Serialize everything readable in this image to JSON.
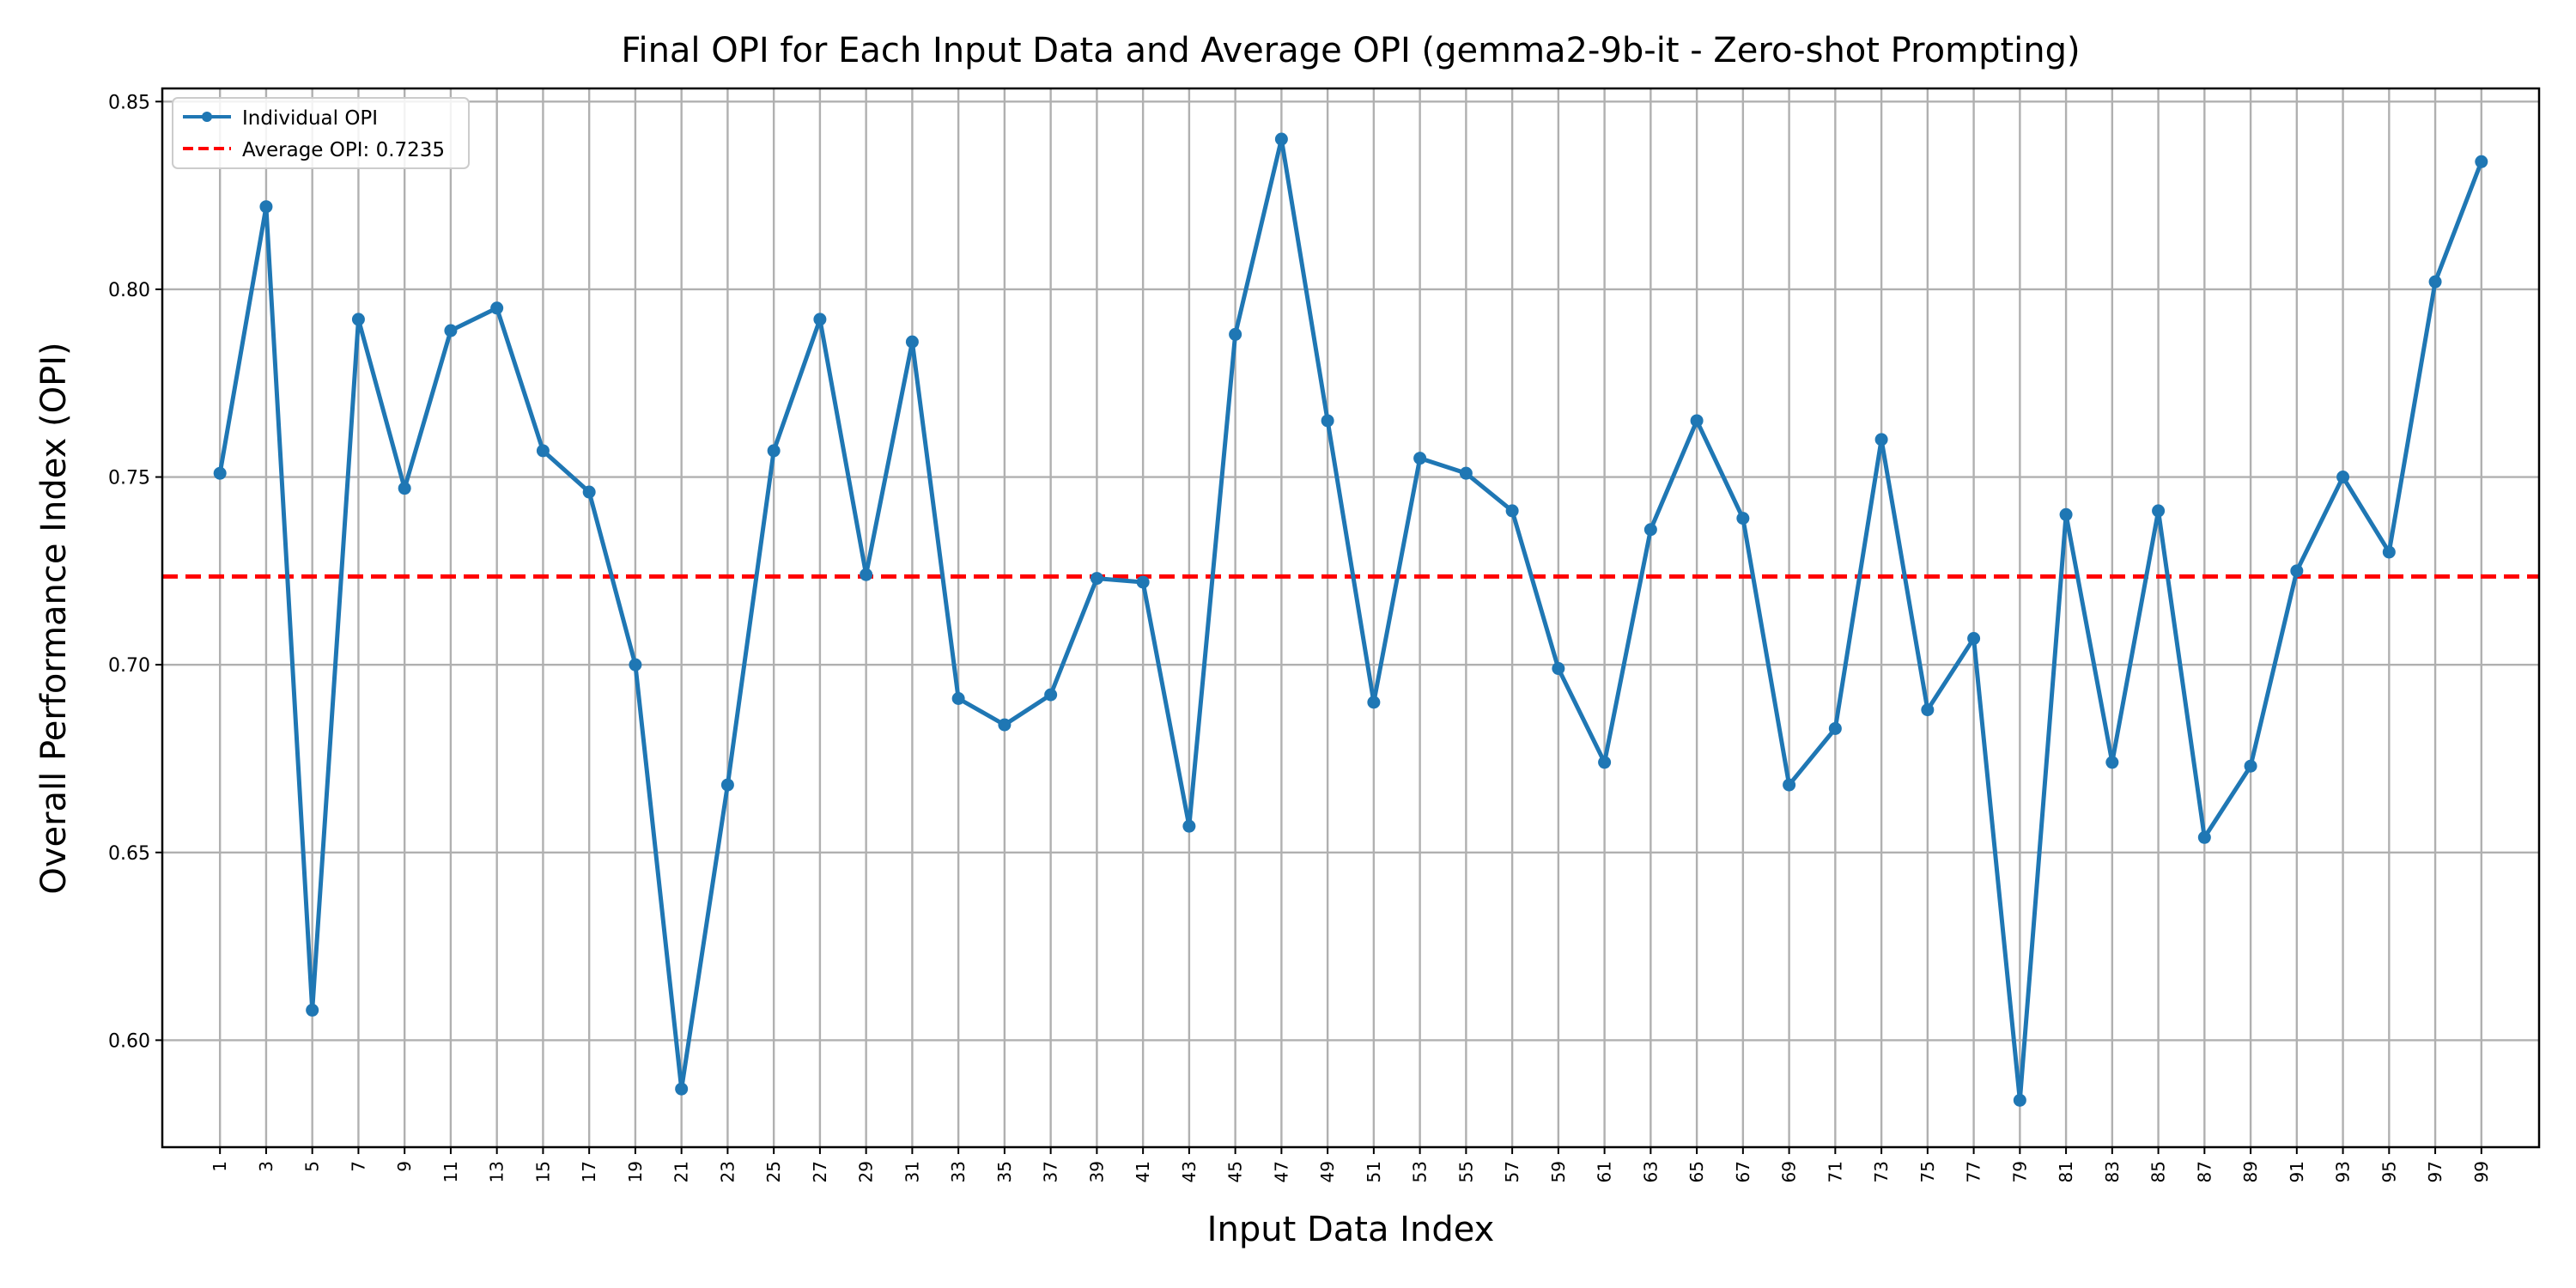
{
  "chart_data": {
    "type": "line",
    "title": "Final OPI for Each Input Data and Average OPI (gemma2-9b-it - Zero-shot Prompting)",
    "xlabel": "Input Data Index",
    "ylabel": "Overall Performance Index (OPI)",
    "xlim": [
      -1.5,
      101.5
    ],
    "ylim": [
      0.5715,
      0.8535
    ],
    "xticks": [
      1,
      3,
      5,
      7,
      9,
      11,
      13,
      15,
      17,
      19,
      21,
      23,
      25,
      27,
      29,
      31,
      33,
      35,
      37,
      39,
      41,
      43,
      45,
      47,
      49,
      51,
      53,
      55,
      57,
      59,
      61,
      63,
      65,
      67,
      69,
      71,
      73,
      75,
      77,
      79,
      81,
      83,
      85,
      87,
      89,
      91,
      93,
      95,
      97,
      99
    ],
    "yticks": [
      0.6,
      0.65,
      0.7,
      0.75,
      0.8,
      0.85
    ],
    "ytick_labels": [
      "0.60",
      "0.65",
      "0.70",
      "0.75",
      "0.80",
      "0.85"
    ],
    "grid": true,
    "legend_position": "top-left",
    "series": [
      {
        "name": "Individual OPI",
        "color": "#1f77b4",
        "x": [
          1,
          3,
          5,
          7,
          9,
          11,
          13,
          15,
          17,
          19,
          21,
          23,
          25,
          27,
          29,
          31,
          33,
          35,
          37,
          39,
          41,
          43,
          45,
          47,
          49,
          51,
          53,
          55,
          57,
          59,
          61,
          63,
          65,
          67,
          69,
          71,
          73,
          75,
          77,
          79,
          81,
          83,
          85,
          87,
          89,
          91,
          93,
          95,
          97,
          99
        ],
        "values": [
          0.751,
          0.822,
          0.608,
          0.792,
          0.747,
          0.789,
          0.795,
          0.757,
          0.746,
          0.7,
          0.587,
          0.668,
          0.757,
          0.792,
          0.724,
          0.786,
          0.691,
          0.684,
          0.692,
          0.723,
          0.722,
          0.657,
          0.788,
          0.84,
          0.765,
          0.69,
          0.755,
          0.751,
          0.741,
          0.699,
          0.674,
          0.736,
          0.765,
          0.739,
          0.668,
          0.683,
          0.76,
          0.688,
          0.707,
          0.584,
          0.74,
          0.674,
          0.741,
          0.654,
          0.673,
          0.725,
          0.75,
          0.73,
          0.802,
          0.834
        ]
      }
    ],
    "average_line": {
      "label": "Average OPI: 0.7235",
      "value": 0.7235,
      "color": "#ff0000"
    }
  }
}
